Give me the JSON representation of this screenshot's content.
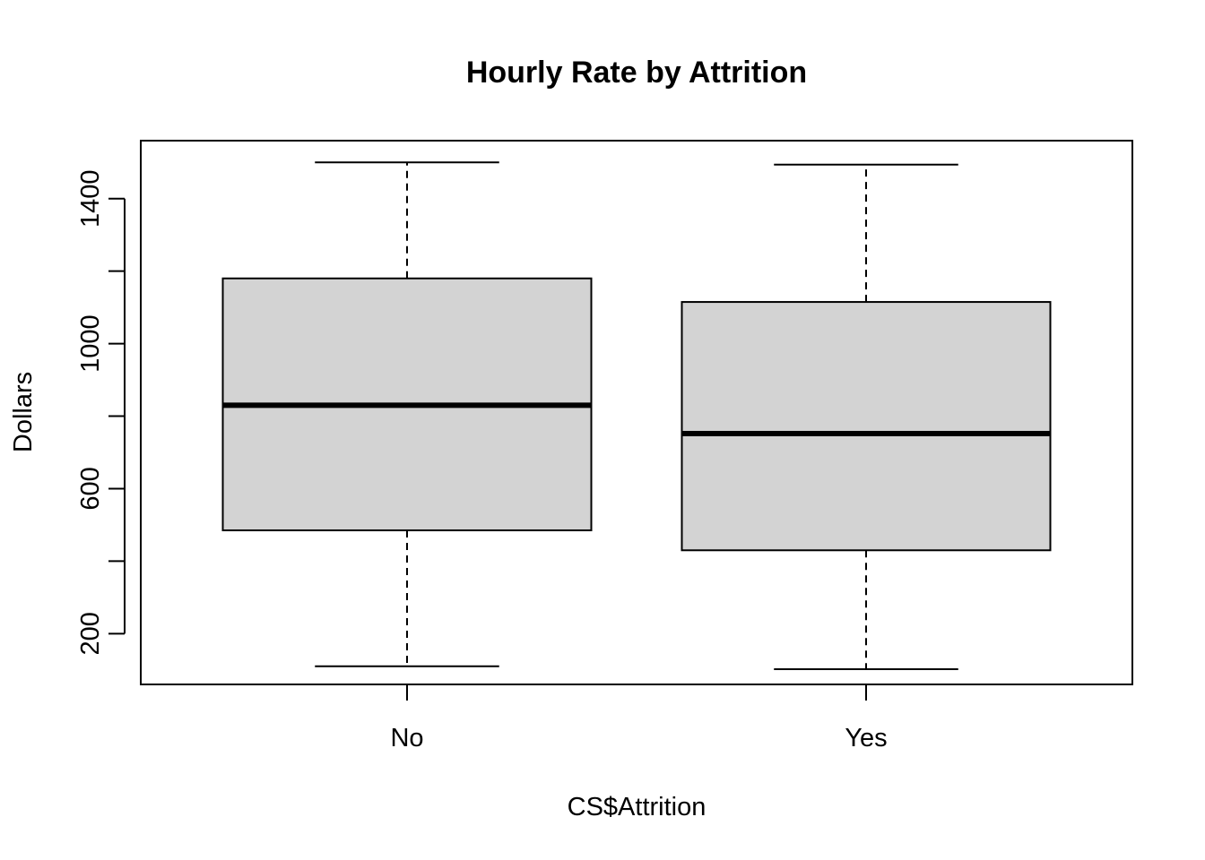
{
  "chart_data": {
    "type": "boxplot",
    "title": "Hourly Rate by Attrition",
    "xlabel": "CS$Attrition",
    "ylabel": "Dollars",
    "ylim": [
      60,
      1560
    ],
    "y_ticks": [
      200,
      600,
      1000,
      1400
    ],
    "y_tick_labels": [
      "200",
      "600",
      "1000",
      "1400"
    ],
    "grid": false,
    "box_fill": "#d3d3d3",
    "categories": [
      "No",
      "Yes"
    ],
    "boxes": [
      {
        "name": "No",
        "min": 110,
        "q1": 485,
        "median": 830,
        "q3": 1180,
        "max": 1500
      },
      {
        "name": "Yes",
        "min": 102,
        "q1": 430,
        "median": 752,
        "q3": 1115,
        "max": 1494
      }
    ]
  }
}
